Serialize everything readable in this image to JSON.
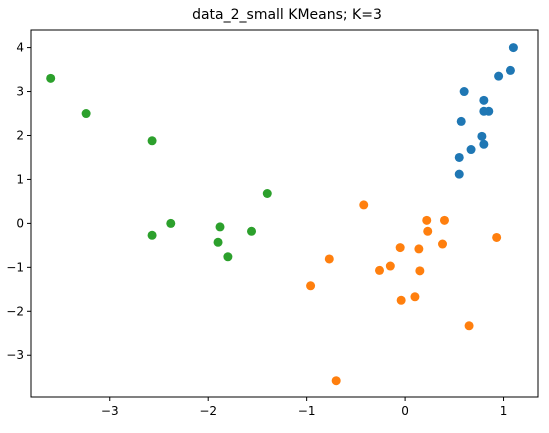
{
  "chart_data": {
    "type": "scatter",
    "title": "data_2_small KMeans; K=3",
    "xlabel": "",
    "ylabel": "",
    "xlim": [
      -3.8,
      1.35
    ],
    "ylim": [
      -3.95,
      4.4
    ],
    "xticks": [
      -3,
      -2,
      -1,
      0,
      1
    ],
    "yticks": [
      -3,
      -2,
      -1,
      0,
      1,
      2,
      3,
      4
    ],
    "grid": false,
    "series": [
      {
        "color": "#1f77b4",
        "points": [
          [
            1.1,
            4.0
          ],
          [
            1.07,
            3.48
          ],
          [
            0.95,
            3.35
          ],
          [
            0.6,
            3.0
          ],
          [
            0.8,
            2.8
          ],
          [
            0.57,
            2.32
          ],
          [
            0.85,
            2.55
          ],
          [
            0.8,
            2.55
          ],
          [
            0.78,
            1.98
          ],
          [
            0.67,
            1.68
          ],
          [
            0.8,
            1.8
          ],
          [
            0.55,
            1.5
          ],
          [
            0.55,
            1.12
          ]
        ]
      },
      {
        "color": "#ff7f0e",
        "points": [
          [
            -0.42,
            0.42
          ],
          [
            0.22,
            0.07
          ],
          [
            0.4,
            0.07
          ],
          [
            0.23,
            -0.18
          ],
          [
            0.93,
            -0.32
          ],
          [
            0.38,
            -0.47
          ],
          [
            -0.05,
            -0.55
          ],
          [
            0.14,
            -0.58
          ],
          [
            -0.77,
            -0.81
          ],
          [
            -0.15,
            -0.97
          ],
          [
            -0.26,
            -1.07
          ],
          [
            0.15,
            -1.08
          ],
          [
            -0.96,
            -1.42
          ],
          [
            0.1,
            -1.67
          ],
          [
            -0.04,
            -1.75
          ],
          [
            0.65,
            -2.33
          ],
          [
            -0.7,
            -3.58
          ]
        ]
      },
      {
        "color": "#2ca02c",
        "points": [
          [
            -3.6,
            3.3
          ],
          [
            -3.24,
            2.5
          ],
          [
            -2.57,
            1.88
          ],
          [
            -1.4,
            0.68
          ],
          [
            -2.38,
            0.0
          ],
          [
            -1.88,
            -0.08
          ],
          [
            -2.57,
            -0.27
          ],
          [
            -1.56,
            -0.18
          ],
          [
            -1.9,
            -0.43
          ],
          [
            -1.8,
            -0.76
          ]
        ]
      }
    ]
  }
}
